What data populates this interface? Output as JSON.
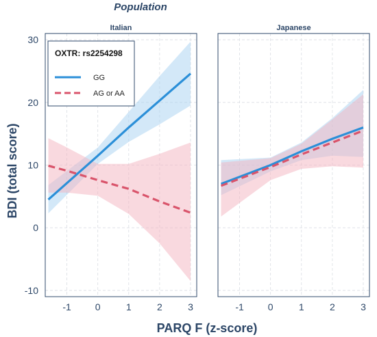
{
  "chart_data": {
    "type": "line",
    "title": "Population",
    "xlabel": "PARQ F (z-score)",
    "ylabel": "BDI (total score)",
    "xlim": [
      -1.7,
      3.2
    ],
    "ylim": [
      -11,
      31
    ],
    "x_ticks": [
      -1,
      0,
      1,
      2,
      3
    ],
    "y_ticks": [
      -10,
      0,
      10,
      20,
      30
    ],
    "y_tick_labels": [
      "-10",
      "0",
      "10",
      "20",
      "30"
    ],
    "x_tick_labels": [
      "-1",
      "0",
      "1",
      "2",
      "3"
    ],
    "grid": true,
    "legend": {
      "title": "OXTR: rs2254298",
      "placement": "top-left",
      "entries": [
        "GG",
        "AG or AA"
      ]
    },
    "series_colors": [
      "#2b8fd8",
      "#d9546b"
    ],
    "band_colors": [
      "#a8d2f2",
      "#f4b4c0"
    ],
    "panels": [
      {
        "label": "Italian",
        "series": [
          {
            "name": "GG",
            "x": [
              -1.6,
              0,
              1,
              2,
              3
            ],
            "y": [
              4.5,
              11.5,
              16,
              20.3,
              24.6
            ],
            "lower": [
              2.3,
              10.2,
              13.7,
              16.5,
              19.5
            ],
            "upper": [
              6.8,
              12.8,
              18.5,
              24.2,
              29.7
            ]
          },
          {
            "name": "AG or AA",
            "x": [
              -1.6,
              -1,
              0,
              1,
              2,
              3
            ],
            "y": [
              9.9,
              9.1,
              7.6,
              6.2,
              4.2,
              2.4
            ],
            "lower": [
              5.6,
              5.6,
              5.1,
              2.2,
              -2.5,
              -8.5
            ],
            "upper": [
              14.3,
              12.8,
              10.2,
              10.2,
              11.8,
              13.6
            ]
          }
        ]
      },
      {
        "label": "Japanese",
        "series": [
          {
            "name": "GG",
            "x": [
              -1.6,
              0,
              1,
              2,
              3
            ],
            "y": [
              7,
              10,
              12.2,
              14.2,
              16
            ],
            "lower": [
              5.2,
              9,
              10.8,
              11.5,
              11.3
            ],
            "upper": [
              10.8,
              11.2,
              13.6,
              17.5,
              22
            ]
          },
          {
            "name": "AG or AA",
            "x": [
              -1.6,
              0,
              1,
              2,
              3
            ],
            "y": [
              6.7,
              9.7,
              11.7,
              13.6,
              15.5
            ],
            "lower": [
              1.8,
              7.6,
              9.4,
              9.8,
              9.6
            ],
            "upper": [
              10.4,
              11.1,
              13.4,
              17.3,
              21.3
            ]
          }
        ]
      }
    ]
  }
}
